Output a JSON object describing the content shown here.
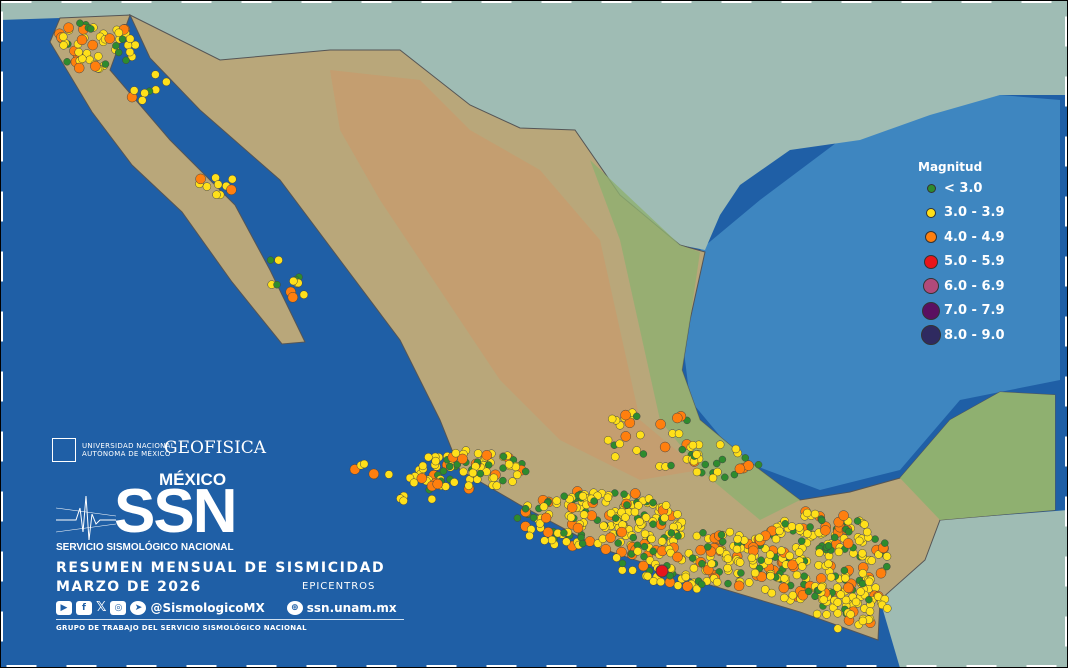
{
  "map": {
    "legend": {
      "title": "Magnitud",
      "items": [
        {
          "label": "< 3.0",
          "color": "#2e8b2e"
        },
        {
          "label": "3.0 - 3.9",
          "color": "#ffe01a"
        },
        {
          "label": "4.0 - 4.9",
          "color": "#ff7f0e"
        },
        {
          "label": "5.0 - 5.9",
          "color": "#e8151b"
        },
        {
          "label": "6.0 - 6.9",
          "color": "#b04a7a"
        },
        {
          "label": "7.0 - 7.9",
          "color": "#5a1060"
        },
        {
          "label": "8.0 - 9.0",
          "color": "#2f2a60"
        }
      ]
    },
    "colors": {
      "ocean": "#1f5fa6",
      "land": "#b9a77a",
      "foreign_land": "#9fbcb4"
    }
  },
  "branding": {
    "unam": "UNIVERSIDAD NACIONAL AUTÓNOMA DE MÉXICO",
    "geofisica": "GEOFISICA",
    "mexico": "MÉXICO",
    "ssn": "SSN",
    "service": "SERVICIO SISMOLÓGICO NACIONAL",
    "title": "RESUMEN MENSUAL DE SISMICIDAD",
    "period": "MARZO DE 2026",
    "subtitle": "EPICENTROS",
    "handle": "@SismologicoMX",
    "website": "ssn.unam.mx",
    "footer": "GRUPO DE TRABAJO DEL SERVICIO SISMOLÓGICO NACIONAL"
  }
}
